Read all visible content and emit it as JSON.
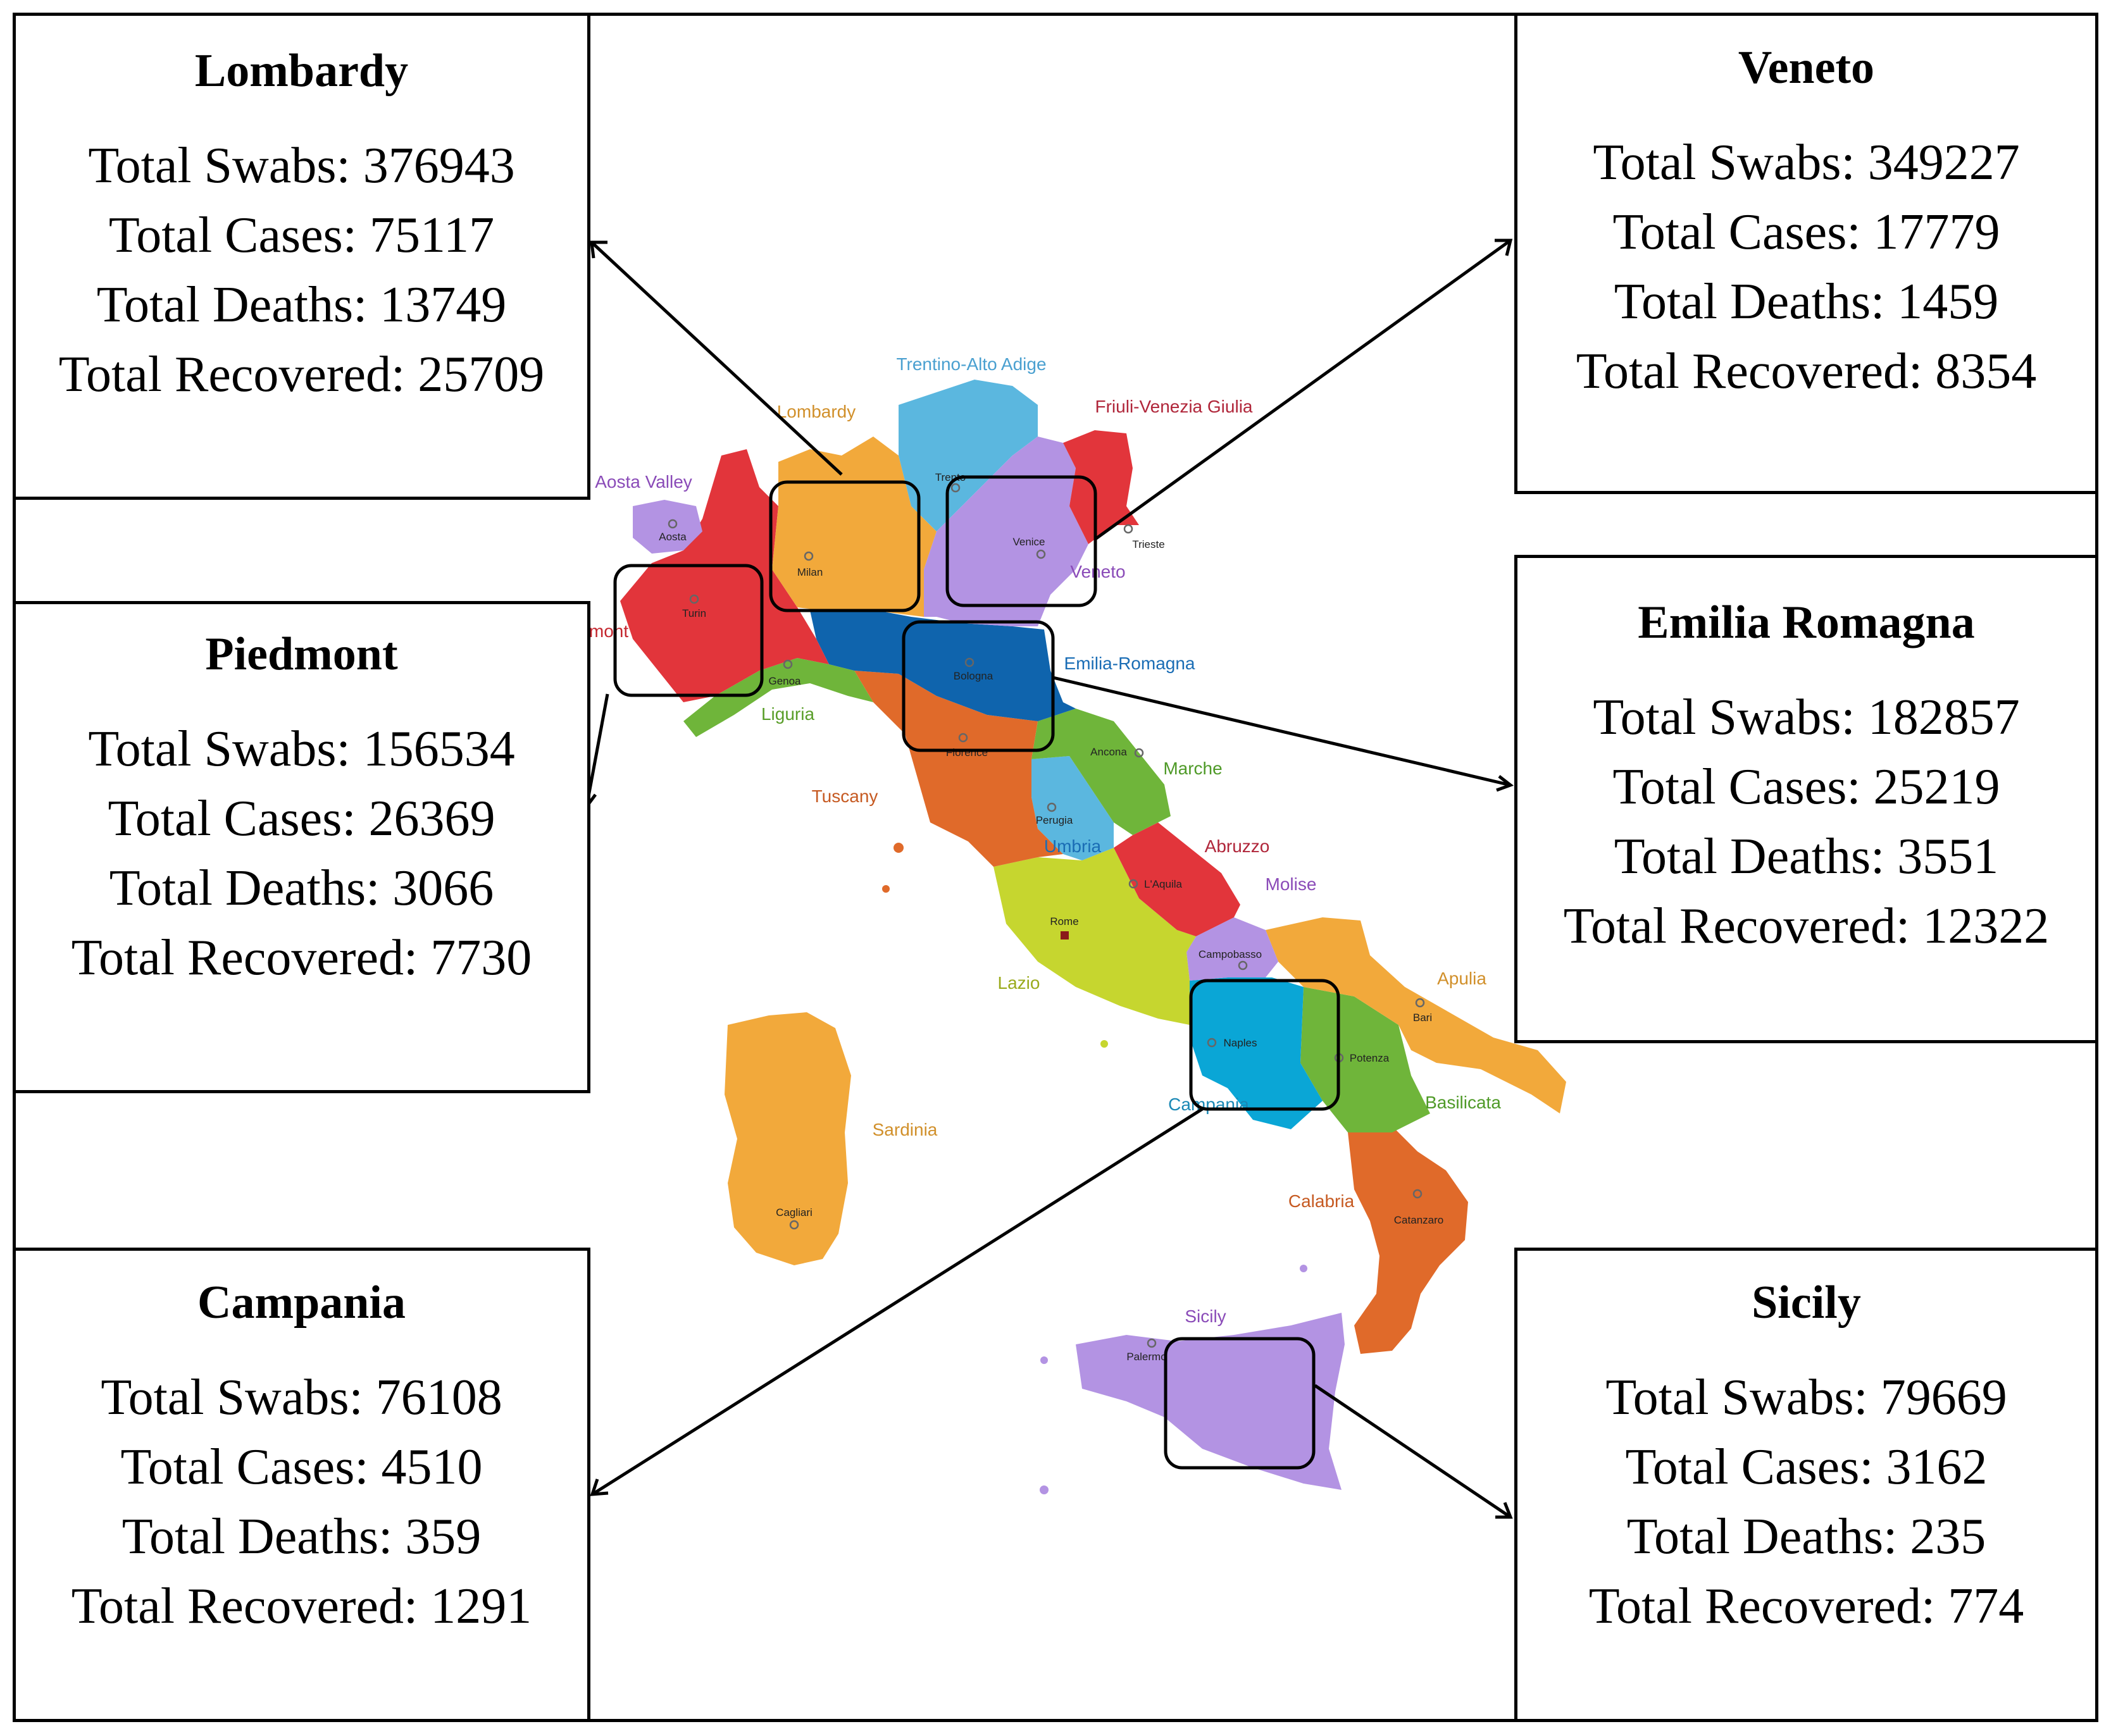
{
  "regions": [
    {
      "name": "Lombardy",
      "total_swabs_label": "Total Swabs: 376943",
      "total_cases_label": "Total Cases: 75117",
      "total_deaths_label": "Total Deaths: 13749",
      "total_recovered_label": "Total Recovered: 25709"
    },
    {
      "name": "Veneto",
      "total_swabs_label": "Total Swabs: 349227",
      "total_cases_label": "Total Cases: 17779",
      "total_deaths_label": "Total Deaths: 1459",
      "total_recovered_label": "Total Recovered: 8354"
    },
    {
      "name": "Piedmont",
      "total_swabs_label": "Total Swabs: 156534",
      "total_cases_label": "Total Cases: 26369",
      "total_deaths_label": "Total Deaths: 3066",
      "total_recovered_label": "Total Recovered: 7730"
    },
    {
      "name": "Emilia Romagna",
      "total_swabs_label": "Total Swabs: 182857",
      "total_cases_label": "Total Cases: 25219",
      "total_deaths_label": "Total Deaths: 3551",
      "total_recovered_label": "Total Recovered: 12322"
    },
    {
      "name": "Campania",
      "total_swabs_label": "Total Swabs: 76108",
      "total_cases_label": "Total Cases: 4510",
      "total_deaths_label": "Total Deaths: 359",
      "total_recovered_label": "Total Recovered: 1291"
    },
    {
      "name": "Sicily",
      "total_swabs_label": "Total Swabs: 79669",
      "total_cases_label": "Total Cases: 3162",
      "total_deaths_label": "Total Deaths: 235",
      "total_recovered_label": "Total Recovered: 774"
    }
  ],
  "map_labels": {
    "trentino": "Trentino-Alto Adige",
    "lombardy": "Lombardy",
    "friuli": "Friuli-Venezia Giulia",
    "aosta_valley": "Aosta Valley",
    "piedmont": "mont",
    "veneto": "Veneto",
    "emilia": "Emilia-Romagna",
    "liguria": "Liguria",
    "tuscany": "Tuscany",
    "marche": "Marche",
    "umbria": "Umbria",
    "abruzzo": "Abruzzo",
    "molise": "Molise",
    "lazio": "Lazio",
    "apulia": "Apulia",
    "sardinia": "Sardinia",
    "campania": "Campania",
    "basilicata": "Basilicata",
    "calabria": "Calabria",
    "sicily": "Sicily"
  },
  "city_labels": {
    "aosta": "Aosta",
    "milan": "Milan",
    "trento": "Trento",
    "venice": "Venice",
    "trieste": "Trieste",
    "turin": "Turin",
    "genoa": "Genoa",
    "bologna": "Bologna",
    "florence": "Florence",
    "ancona": "Ancona",
    "perugia": "Perugia",
    "laquila": "L'Aquila",
    "rome": "Rome",
    "campobasso": "Campobasso",
    "bari": "Bari",
    "naples": "Naples",
    "potenza": "Potenza",
    "catanzaro": "Catanzaro",
    "cagliari": "Cagliari",
    "palermo": "Palermo"
  },
  "colors": {
    "lombardy": "#f2a93b",
    "veneto": "#b393e3",
    "piedmont": "#e2353b",
    "emilia": "#0f64ad",
    "campania": "#0aa6d6",
    "sicily": "#b393e3",
    "tuscany": "#e06a2a",
    "trentino": "#5bb7df",
    "friuli": "#e2353b",
    "liguria": "#6fb53a",
    "marche": "#6fb53a",
    "umbria": "#5bb7df",
    "abruzzo": "#e2353b",
    "lazio": "#c6d62f",
    "apulia": "#f2a93b",
    "basilicata": "#6fb53a",
    "calabria": "#e06a2a",
    "sardinia": "#f2a93b",
    "aosta": "#b393e3",
    "molise": "#b393e3"
  }
}
